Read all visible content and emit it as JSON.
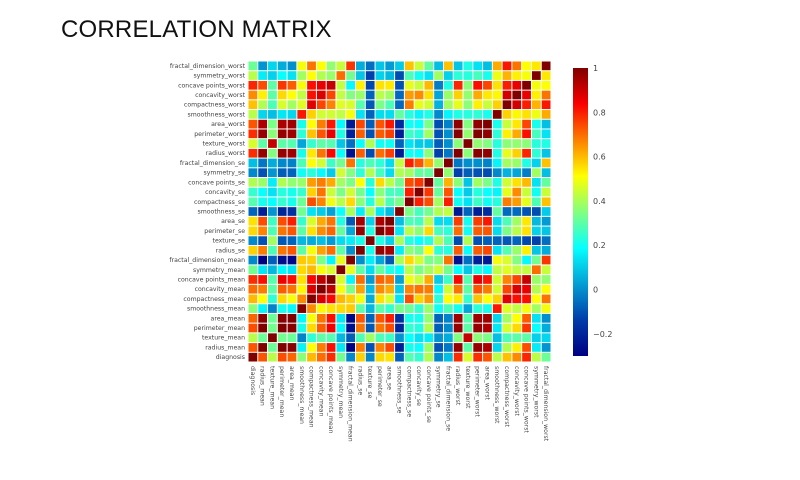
{
  "title": "CORRELATION MATRIX",
  "chart_data": {
    "type": "heatmap",
    "title": "CORRELATION MATRIX",
    "colorscale": "jet",
    "zmin": -0.3,
    "zmax": 1.0,
    "colorbar_ticks": [
      {
        "value": 1.0,
        "label": "1"
      },
      {
        "value": 0.8,
        "label": "0.8"
      },
      {
        "value": 0.6,
        "label": "0.6"
      },
      {
        "value": 0.4,
        "label": "0.4"
      },
      {
        "value": 0.2,
        "label": "0.2"
      },
      {
        "value": 0.0,
        "label": "0"
      },
      {
        "value": -0.2,
        "label": "−0.2"
      }
    ],
    "labels": [
      "diagnosis",
      "radius_mean",
      "texture_mean",
      "perimeter_mean",
      "area_mean",
      "smoothness_mean",
      "compactness_mean",
      "concavity_mean",
      "concave points_mean",
      "symmetry_mean",
      "fractal_dimension_mean",
      "radius_se",
      "texture_se",
      "perimeter_se",
      "area_se",
      "smoothness_se",
      "compactness_se",
      "concavity_se",
      "concave points_se",
      "symmetry_se",
      "fractal_dimension_se",
      "radius_worst",
      "texture_worst",
      "perimeter_worst",
      "area_worst",
      "smoothness_worst",
      "compactness_worst",
      "concavity_worst",
      "concave points_worst",
      "symmetry_worst",
      "fractal_dimension_worst"
    ],
    "z": [
      [
        1.0,
        0.73,
        0.42,
        0.74,
        0.71,
        0.36,
        0.6,
        0.7,
        0.78,
        0.33,
        -0.01,
        0.57,
        -0.01,
        0.56,
        0.55,
        -0.07,
        0.29,
        0.25,
        0.41,
        -0.01,
        0.08,
        0.78,
        0.46,
        0.78,
        0.73,
        0.42,
        0.59,
        0.66,
        0.79,
        0.42,
        0.32
      ],
      [
        0.73,
        1.0,
        0.32,
        1.0,
        0.99,
        0.17,
        0.51,
        0.68,
        0.82,
        0.15,
        -0.31,
        0.68,
        -0.1,
        0.67,
        0.74,
        -0.22,
        0.21,
        0.19,
        0.38,
        -0.1,
        -0.04,
        0.97,
        0.3,
        0.97,
        0.94,
        0.12,
        0.41,
        0.53,
        0.74,
        0.16,
        0.01
      ],
      [
        0.42,
        0.32,
        1.0,
        0.33,
        0.32,
        -0.02,
        0.24,
        0.3,
        0.29,
        0.07,
        -0.08,
        0.28,
        0.39,
        0.28,
        0.26,
        0.01,
        0.19,
        0.14,
        0.16,
        0.01,
        0.05,
        0.35,
        0.91,
        0.36,
        0.34,
        0.08,
        0.28,
        0.3,
        0.3,
        0.11,
        0.12
      ],
      [
        0.74,
        1.0,
        0.33,
        1.0,
        0.99,
        0.21,
        0.56,
        0.72,
        0.85,
        0.18,
        -0.26,
        0.69,
        -0.09,
        0.69,
        0.74,
        -0.2,
        0.25,
        0.23,
        0.41,
        -0.08,
        -0.01,
        0.97,
        0.3,
        0.97,
        0.94,
        0.15,
        0.46,
        0.56,
        0.77,
        0.19,
        0.05
      ],
      [
        0.71,
        0.99,
        0.32,
        0.99,
        1.0,
        0.18,
        0.5,
        0.69,
        0.82,
        0.15,
        -0.28,
        0.73,
        -0.07,
        0.73,
        0.8,
        -0.17,
        0.21,
        0.21,
        0.37,
        -0.07,
        -0.02,
        0.96,
        0.29,
        0.96,
        0.96,
        0.12,
        0.39,
        0.51,
        0.72,
        0.14,
        0.0
      ],
      [
        0.36,
        0.17,
        -0.02,
        0.21,
        0.18,
        1.0,
        0.66,
        0.52,
        0.55,
        0.56,
        0.58,
        0.3,
        0.07,
        0.3,
        0.25,
        0.33,
        0.32,
        0.25,
        0.38,
        0.2,
        0.28,
        0.21,
        0.04,
        0.24,
        0.21,
        0.81,
        0.47,
        0.43,
        0.5,
        0.39,
        0.5
      ],
      [
        0.6,
        0.51,
        0.24,
        0.56,
        0.5,
        0.66,
        1.0,
        0.88,
        0.83,
        0.6,
        0.57,
        0.5,
        0.05,
        0.55,
        0.46,
        0.14,
        0.74,
        0.57,
        0.64,
        0.23,
        0.51,
        0.54,
        0.25,
        0.59,
        0.51,
        0.57,
        0.87,
        0.82,
        0.82,
        0.51,
        0.69
      ],
      [
        0.7,
        0.68,
        0.3,
        0.72,
        0.69,
        0.52,
        0.88,
        1.0,
        0.92,
        0.5,
        0.34,
        0.63,
        0.08,
        0.66,
        0.62,
        0.1,
        0.67,
        0.69,
        0.68,
        0.18,
        0.45,
        0.69,
        0.3,
        0.73,
        0.68,
        0.45,
        0.75,
        0.88,
        0.86,
        0.41,
        0.51
      ],
      [
        0.78,
        0.82,
        0.29,
        0.85,
        0.82,
        0.55,
        0.83,
        0.92,
        1.0,
        0.46,
        0.17,
        0.7,
        0.02,
        0.71,
        0.69,
        0.03,
        0.49,
        0.44,
        0.62,
        0.1,
        0.26,
        0.83,
        0.29,
        0.86,
        0.81,
        0.45,
        0.67,
        0.75,
        0.91,
        0.38,
        0.37
      ],
      [
        0.33,
        0.15,
        0.07,
        0.18,
        0.15,
        0.56,
        0.6,
        0.5,
        0.46,
        1.0,
        0.48,
        0.3,
        0.13,
        0.31,
        0.22,
        0.19,
        0.42,
        0.34,
        0.39,
        0.45,
        0.33,
        0.19,
        0.09,
        0.22,
        0.18,
        0.43,
        0.47,
        0.43,
        0.43,
        0.7,
        0.44
      ],
      [
        -0.01,
        -0.31,
        -0.08,
        -0.26,
        -0.28,
        0.58,
        0.57,
        0.34,
        0.17,
        0.48,
        1.0,
        0.0,
        0.16,
        0.04,
        -0.09,
        0.4,
        0.56,
        0.45,
        0.34,
        0.35,
        0.69,
        -0.25,
        -0.05,
        -0.21,
        -0.23,
        0.5,
        0.46,
        0.35,
        0.18,
        0.33,
        0.77
      ],
      [
        0.57,
        0.68,
        0.28,
        0.69,
        0.73,
        0.3,
        0.5,
        0.63,
        0.7,
        0.3,
        0.0,
        1.0,
        0.21,
        0.97,
        0.95,
        0.16,
        0.36,
        0.33,
        0.51,
        0.24,
        0.23,
        0.72,
        0.19,
        0.72,
        0.75,
        0.14,
        0.29,
        0.38,
        0.53,
        0.09,
        0.05
      ],
      [
        -0.01,
        -0.1,
        0.39,
        -0.09,
        -0.07,
        0.07,
        0.05,
        0.08,
        0.02,
        0.13,
        0.16,
        0.21,
        1.0,
        0.22,
        0.11,
        0.4,
        0.23,
        0.19,
        0.23,
        0.41,
        0.28,
        -0.11,
        0.41,
        -0.1,
        -0.08,
        -0.07,
        -0.09,
        -0.07,
        -0.12,
        -0.13,
        -0.05
      ],
      [
        0.56,
        0.67,
        0.28,
        0.69,
        0.73,
        0.3,
        0.55,
        0.66,
        0.71,
        0.31,
        0.04,
        0.97,
        0.22,
        1.0,
        0.94,
        0.15,
        0.42,
        0.36,
        0.56,
        0.27,
        0.24,
        0.7,
        0.2,
        0.72,
        0.73,
        0.13,
        0.34,
        0.42,
        0.55,
        0.11,
        0.09
      ],
      [
        0.55,
        0.74,
        0.26,
        0.74,
        0.8,
        0.25,
        0.46,
        0.62,
        0.69,
        0.22,
        -0.09,
        0.95,
        0.11,
        0.94,
        1.0,
        0.08,
        0.28,
        0.27,
        0.42,
        0.13,
        0.13,
        0.76,
        0.2,
        0.76,
        0.81,
        0.13,
        0.28,
        0.39,
        0.54,
        0.07,
        0.02
      ],
      [
        -0.07,
        -0.22,
        0.01,
        -0.2,
        -0.17,
        0.33,
        0.14,
        0.1,
        0.03,
        0.19,
        0.4,
        0.16,
        0.4,
        0.15,
        0.08,
        1.0,
        0.34,
        0.27,
        0.33,
        0.41,
        0.43,
        -0.23,
        -0.07,
        -0.22,
        -0.18,
        0.31,
        -0.06,
        -0.06,
        -0.1,
        -0.11,
        0.1
      ],
      [
        0.29,
        0.21,
        0.19,
        0.25,
        0.21,
        0.32,
        0.74,
        0.67,
        0.49,
        0.42,
        0.56,
        0.36,
        0.23,
        0.42,
        0.28,
        0.34,
        1.0,
        0.8,
        0.74,
        0.39,
        0.8,
        0.2,
        0.14,
        0.26,
        0.2,
        0.23,
        0.68,
        0.64,
        0.48,
        0.28,
        0.59
      ],
      [
        0.25,
        0.19,
        0.14,
        0.23,
        0.21,
        0.25,
        0.57,
        0.69,
        0.44,
        0.34,
        0.45,
        0.33,
        0.19,
        0.36,
        0.27,
        0.27,
        0.8,
        1.0,
        0.77,
        0.31,
        0.73,
        0.19,
        0.1,
        0.23,
        0.19,
        0.17,
        0.48,
        0.66,
        0.44,
        0.2,
        0.44
      ],
      [
        0.41,
        0.38,
        0.16,
        0.41,
        0.37,
        0.38,
        0.64,
        0.68,
        0.62,
        0.39,
        0.34,
        0.51,
        0.23,
        0.56,
        0.42,
        0.33,
        0.74,
        0.77,
        1.0,
        0.31,
        0.61,
        0.36,
        0.09,
        0.39,
        0.34,
        0.22,
        0.45,
        0.55,
        0.6,
        0.14,
        0.31
      ],
      [
        -0.01,
        -0.1,
        0.01,
        -0.08,
        -0.07,
        0.2,
        0.23,
        0.18,
        0.1,
        0.45,
        0.35,
        0.24,
        0.41,
        0.27,
        0.13,
        0.41,
        0.39,
        0.31,
        0.31,
        1.0,
        0.37,
        -0.13,
        -0.08,
        -0.1,
        -0.11,
        -0.01,
        0.06,
        0.04,
        -0.03,
        0.39,
        0.08
      ],
      [
        0.08,
        -0.04,
        0.05,
        -0.01,
        -0.02,
        0.28,
        0.51,
        0.45,
        0.26,
        0.33,
        0.69,
        0.23,
        0.28,
        0.24,
        0.13,
        0.43,
        0.8,
        0.73,
        0.61,
        0.37,
        1.0,
        -0.04,
        -0.0,
        -0.0,
        -0.02,
        0.17,
        0.39,
        0.38,
        0.22,
        0.11,
        0.59
      ],
      [
        0.78,
        0.97,
        0.35,
        0.97,
        0.96,
        0.21,
        0.54,
        0.69,
        0.83,
        0.19,
        -0.25,
        0.72,
        -0.11,
        0.7,
        0.76,
        -0.23,
        0.2,
        0.19,
        0.36,
        -0.13,
        -0.04,
        1.0,
        0.36,
        0.99,
        0.98,
        0.22,
        0.48,
        0.57,
        0.79,
        0.24,
        0.09
      ],
      [
        0.46,
        0.3,
        0.91,
        0.3,
        0.29,
        0.04,
        0.25,
        0.3,
        0.29,
        0.09,
        -0.05,
        0.19,
        0.41,
        0.2,
        0.2,
        -0.07,
        0.14,
        0.1,
        0.09,
        -0.08,
        -0.0,
        0.36,
        1.0,
        0.37,
        0.35,
        0.23,
        0.36,
        0.37,
        0.36,
        0.23,
        0.22
      ],
      [
        0.78,
        0.97,
        0.36,
        0.97,
        0.96,
        0.24,
        0.59,
        0.73,
        0.86,
        0.22,
        -0.21,
        0.72,
        -0.1,
        0.72,
        0.76,
        -0.22,
        0.26,
        0.23,
        0.39,
        -0.1,
        -0.0,
        0.99,
        0.37,
        1.0,
        0.98,
        0.24,
        0.53,
        0.62,
        0.82,
        0.27,
        0.14
      ],
      [
        0.73,
        0.94,
        0.34,
        0.94,
        0.96,
        0.21,
        0.51,
        0.68,
        0.81,
        0.18,
        -0.23,
        0.75,
        -0.08,
        0.73,
        0.81,
        -0.18,
        0.2,
        0.19,
        0.34,
        -0.11,
        -0.02,
        0.98,
        0.35,
        0.98,
        1.0,
        0.21,
        0.44,
        0.54,
        0.75,
        0.21,
        0.08
      ],
      [
        0.42,
        0.12,
        0.08,
        0.15,
        0.12,
        0.81,
        0.57,
        0.45,
        0.45,
        0.43,
        0.5,
        0.14,
        -0.07,
        0.13,
        0.13,
        0.31,
        0.23,
        0.17,
        0.22,
        -0.01,
        0.17,
        0.22,
        0.23,
        0.24,
        0.21,
        1.0,
        0.57,
        0.52,
        0.55,
        0.49,
        0.62
      ],
      [
        0.59,
        0.41,
        0.28,
        0.46,
        0.39,
        0.47,
        0.87,
        0.75,
        0.67,
        0.47,
        0.46,
        0.29,
        -0.09,
        0.34,
        0.28,
        -0.06,
        0.68,
        0.48,
        0.45,
        0.06,
        0.39,
        0.48,
        0.36,
        0.53,
        0.44,
        0.57,
        1.0,
        0.89,
        0.8,
        0.61,
        0.81
      ],
      [
        0.66,
        0.53,
        0.3,
        0.56,
        0.51,
        0.43,
        0.82,
        0.88,
        0.75,
        0.43,
        0.35,
        0.38,
        -0.07,
        0.42,
        0.39,
        -0.06,
        0.64,
        0.66,
        0.55,
        0.04,
        0.38,
        0.57,
        0.37,
        0.62,
        0.54,
        0.52,
        0.89,
        1.0,
        0.86,
        0.53,
        0.69
      ],
      [
        0.79,
        0.74,
        0.3,
        0.77,
        0.72,
        0.5,
        0.82,
        0.86,
        0.91,
        0.43,
        0.18,
        0.53,
        -0.12,
        0.55,
        0.54,
        -0.1,
        0.48,
        0.44,
        0.6,
        -0.03,
        0.22,
        0.79,
        0.36,
        0.82,
        0.75,
        0.55,
        0.8,
        0.86,
        1.0,
        0.5,
        0.51
      ],
      [
        0.42,
        0.16,
        0.11,
        0.19,
        0.14,
        0.39,
        0.51,
        0.41,
        0.38,
        0.7,
        0.33,
        0.09,
        -0.13,
        0.11,
        0.07,
        -0.11,
        0.28,
        0.2,
        0.14,
        0.39,
        0.11,
        0.24,
        0.23,
        0.27,
        0.21,
        0.49,
        0.61,
        0.53,
        0.5,
        1.0,
        0.54
      ],
      [
        0.32,
        0.01,
        0.12,
        0.05,
        0.0,
        0.5,
        0.69,
        0.51,
        0.37,
        0.44,
        0.77,
        0.05,
        -0.05,
        0.09,
        0.02,
        0.1,
        0.59,
        0.44,
        0.31,
        0.08,
        0.59,
        0.09,
        0.22,
        0.14,
        0.08,
        0.62,
        0.81,
        0.69,
        0.51,
        0.54,
        1.0
      ]
    ]
  }
}
